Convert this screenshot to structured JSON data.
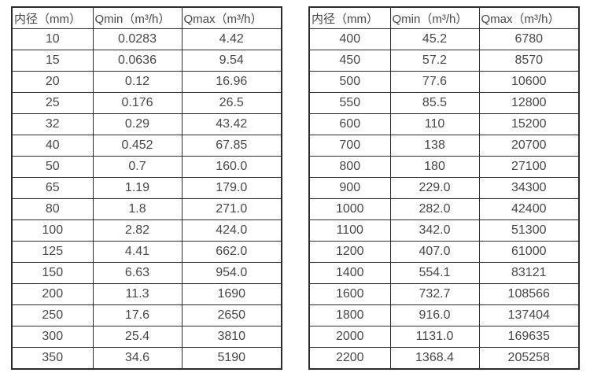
{
  "colors": {
    "background": "#ffffff",
    "border": "#2d2d2d",
    "text": "#474747"
  },
  "left_table": {
    "headers": [
      "内径（mm）",
      "Qmin（m³/h）",
      "Qmax（m³/h）"
    ],
    "rows": [
      [
        "10",
        "0.0283",
        "4.42"
      ],
      [
        "15",
        "0.0636",
        "9.54"
      ],
      [
        "20",
        "0.12",
        "16.96"
      ],
      [
        "25",
        "0.176",
        "26.5"
      ],
      [
        "32",
        "0.29",
        "43.42"
      ],
      [
        "40",
        "0.452",
        "67.85"
      ],
      [
        "50",
        "0.7",
        "160.0"
      ],
      [
        "65",
        "1.19",
        "179.0"
      ],
      [
        "80",
        "1.8",
        "271.0"
      ],
      [
        "100",
        "2.82",
        "424.0"
      ],
      [
        "125",
        "4.41",
        "662.0"
      ],
      [
        "150",
        "6.63",
        "954.0"
      ],
      [
        "200",
        "11.3",
        "1690"
      ],
      [
        "250",
        "17.6",
        "2650"
      ],
      [
        "300",
        "25.4",
        "3810"
      ],
      [
        "350",
        "34.6",
        "5190"
      ]
    ]
  },
  "right_table": {
    "headers": [
      "内径（mm）",
      "Qmin（m³/h）",
      "Qmax（m³/h）"
    ],
    "rows": [
      [
        "400",
        "45.2",
        "6780"
      ],
      [
        "450",
        "57.2",
        "8570"
      ],
      [
        "500",
        "77.6",
        "10600"
      ],
      [
        "550",
        "85.5",
        "12800"
      ],
      [
        "600",
        "110",
        "15200"
      ],
      [
        "700",
        "138",
        "20700"
      ],
      [
        "800",
        "180",
        "27100"
      ],
      [
        "900",
        "229.0",
        "34300"
      ],
      [
        "1000",
        "282.0",
        "42400"
      ],
      [
        "1100",
        "342.0",
        "51300"
      ],
      [
        "1200",
        "407.0",
        "61000"
      ],
      [
        "1400",
        "554.1",
        "83121"
      ],
      [
        "1600",
        "732.7",
        "108566"
      ],
      [
        "1800",
        "916.0",
        "137404"
      ],
      [
        "2000",
        "1131.0",
        "169635"
      ],
      [
        "2200",
        "1368.4",
        "205258"
      ]
    ]
  }
}
